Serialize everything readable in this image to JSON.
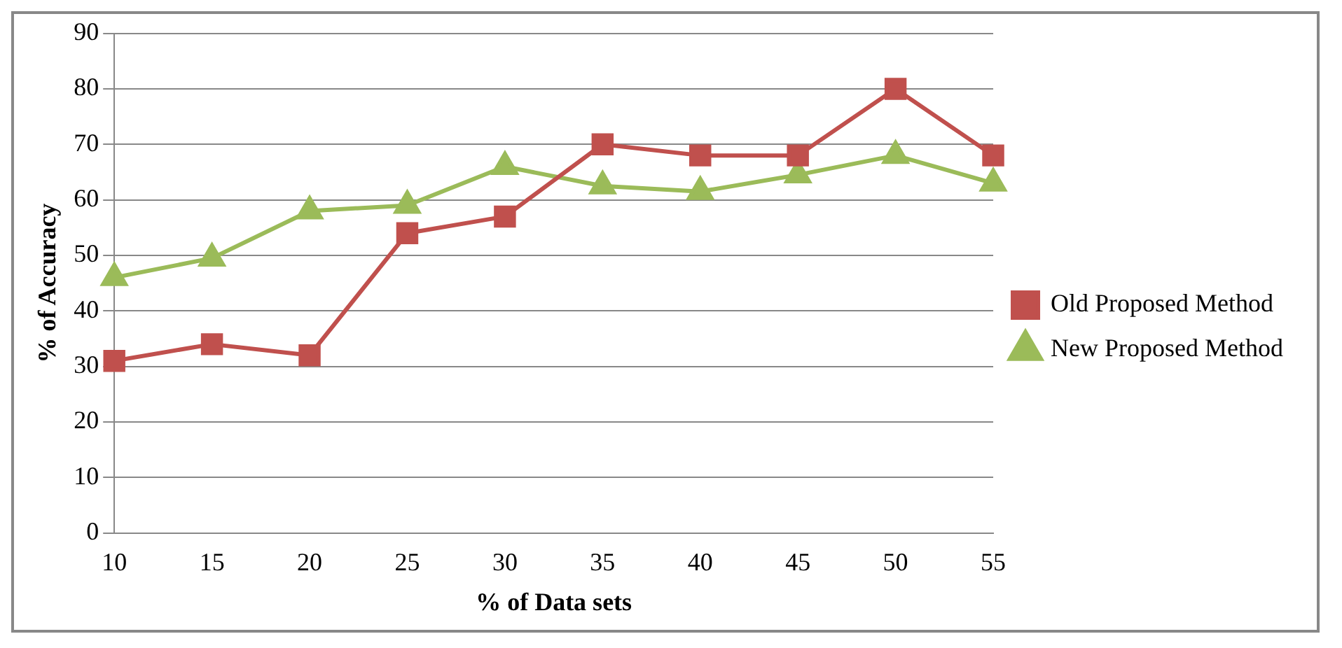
{
  "chart_data": {
    "type": "line",
    "xlabel": "% of Data sets",
    "ylabel": "% of Accuracy",
    "categories": [
      "10",
      "15",
      "20",
      "25",
      "30",
      "35",
      "40",
      "45",
      "50",
      "55"
    ],
    "series": [
      {
        "name": "Old Proposed Method",
        "color": "#c0504d",
        "marker": "square",
        "values": [
          31,
          34,
          32,
          54,
          57,
          70,
          68,
          68,
          80,
          68
        ]
      },
      {
        "name": "New Proposed Method",
        "color": "#9bbb59",
        "marker": "triangle",
        "values": [
          46,
          49.5,
          58,
          59,
          66,
          62.5,
          61.5,
          64.5,
          68,
          63
        ]
      }
    ],
    "ylim": [
      0,
      90
    ],
    "yticks": [
      0,
      10,
      20,
      30,
      40,
      50,
      60,
      70,
      80,
      90
    ],
    "grid": "y",
    "legend": "right"
  }
}
